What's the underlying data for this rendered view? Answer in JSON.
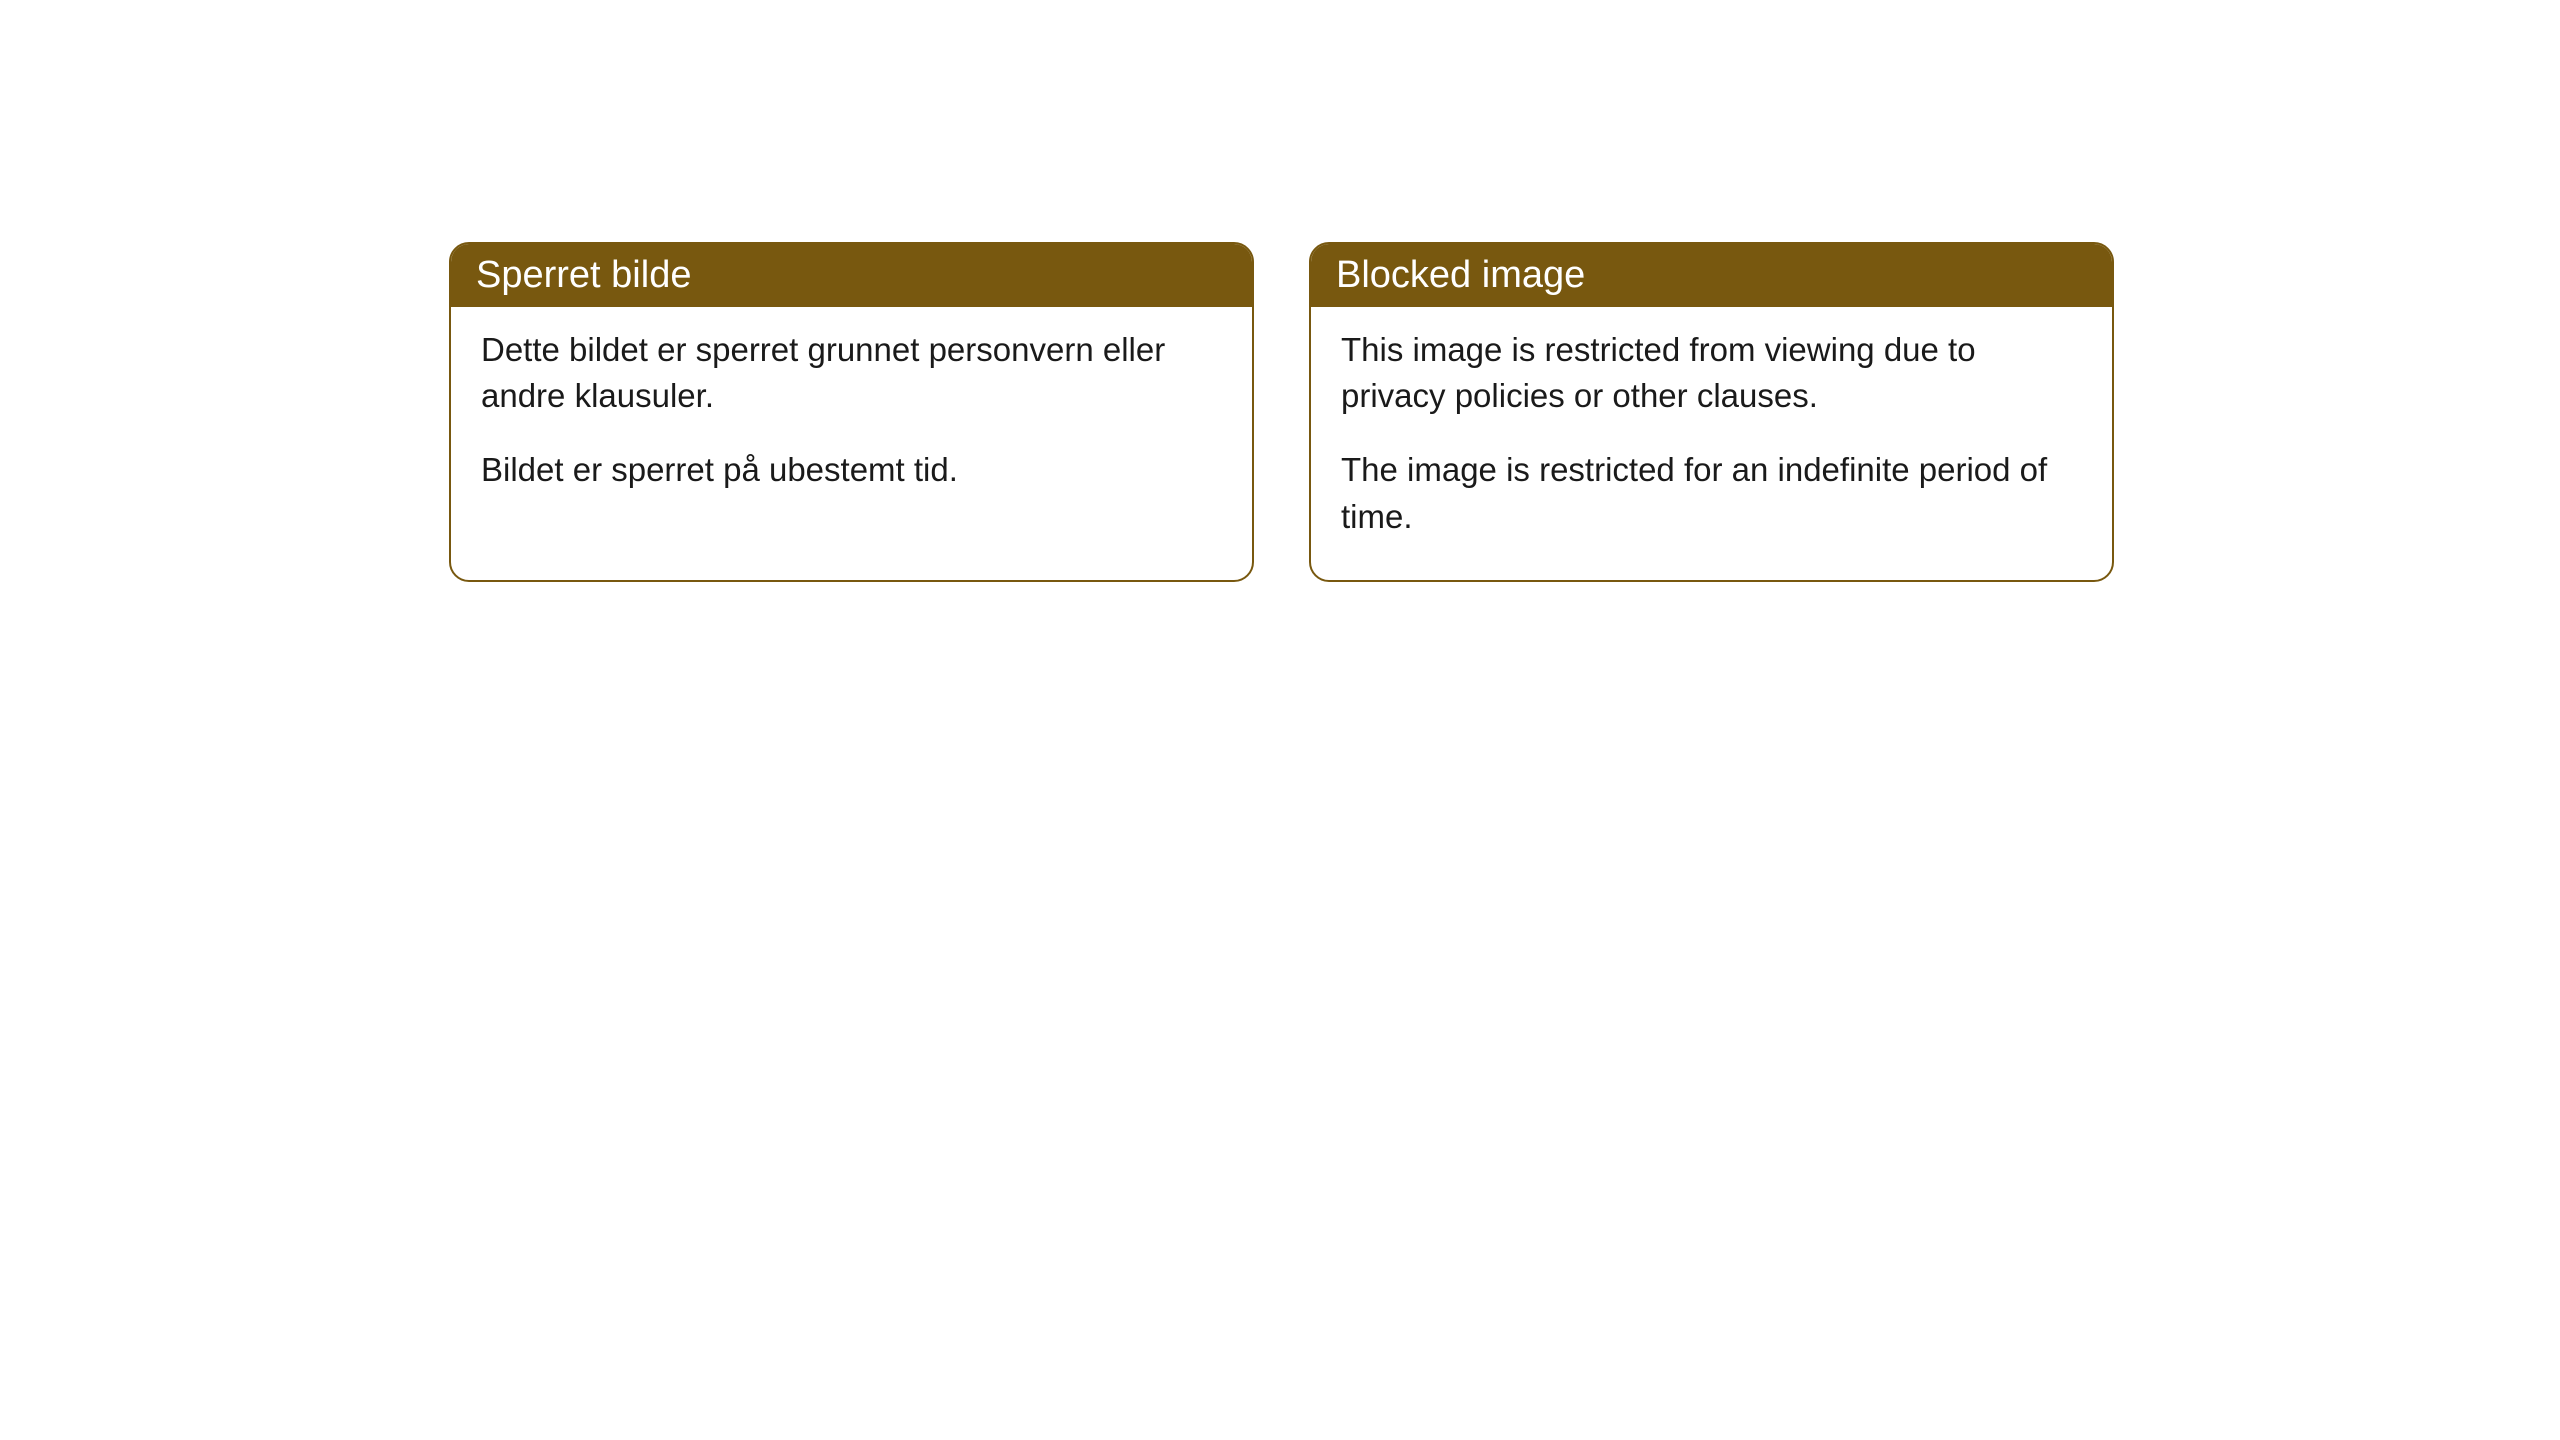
{
  "cards": [
    {
      "title": "Sperret bilde",
      "paragraph1": "Dette bildet er sperret grunnet personvern eller andre klausuler.",
      "paragraph2": "Bildet er sperret på ubestemt tid."
    },
    {
      "title": "Blocked image",
      "paragraph1": "This image is restricted from viewing due to privacy policies or other clauses.",
      "paragraph2": "The image is restricted for an indefinite period of time."
    }
  ],
  "styling": {
    "header_bg_color": "#78580f",
    "header_text_color": "#ffffff",
    "border_color": "#78580f",
    "body_text_color": "#1a1a1a",
    "background_color": "#ffffff",
    "border_radius": 20,
    "title_fontsize": 38,
    "body_fontsize": 33
  }
}
